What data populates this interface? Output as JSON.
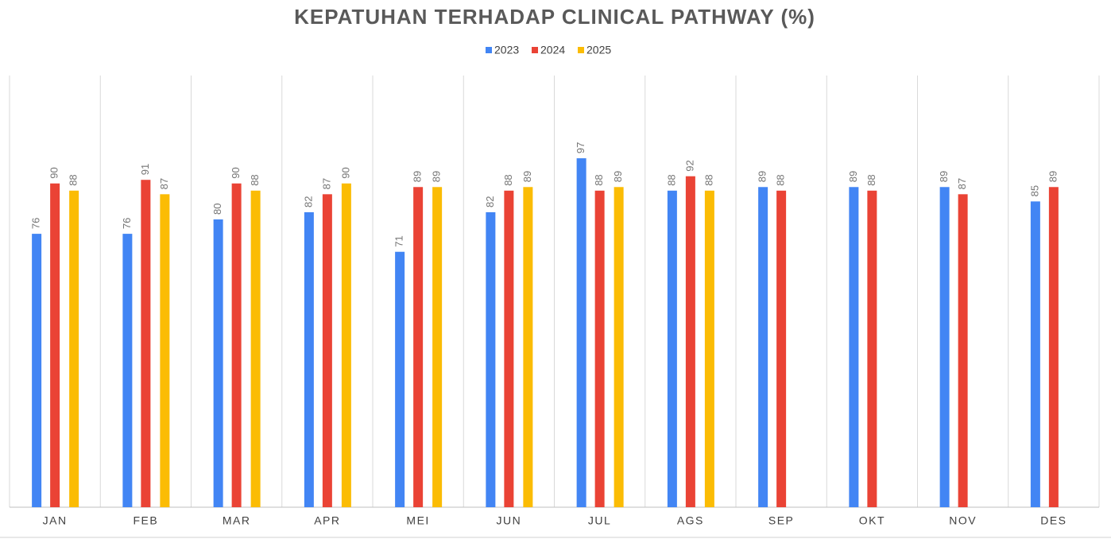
{
  "chart_data": {
    "type": "bar",
    "title": "KEPATUHAN TERHADAP CLINICAL PATHWAY (%)",
    "categories": [
      "JAN",
      "FEB",
      "MAR",
      "APR",
      "MEI",
      "JUN",
      "JUL",
      "AGS",
      "SEP",
      "OKT",
      "NOV",
      "DES"
    ],
    "series": [
      {
        "name": "2023",
        "color": "#4285f4",
        "values": [
          76,
          76,
          80,
          82,
          71,
          82,
          97,
          88,
          89,
          89,
          89,
          85
        ]
      },
      {
        "name": "2024",
        "color": "#ea4335",
        "values": [
          90,
          91,
          90,
          87,
          89,
          88,
          88,
          92,
          88,
          88,
          87,
          89
        ]
      },
      {
        "name": "2025",
        "color": "#fbbc04",
        "values": [
          88,
          87,
          88,
          90,
          89,
          89,
          89,
          88,
          null,
          null,
          null,
          null
        ]
      }
    ],
    "ylim": [
      0,
      120
    ],
    "grid": true,
    "legend": "top"
  }
}
